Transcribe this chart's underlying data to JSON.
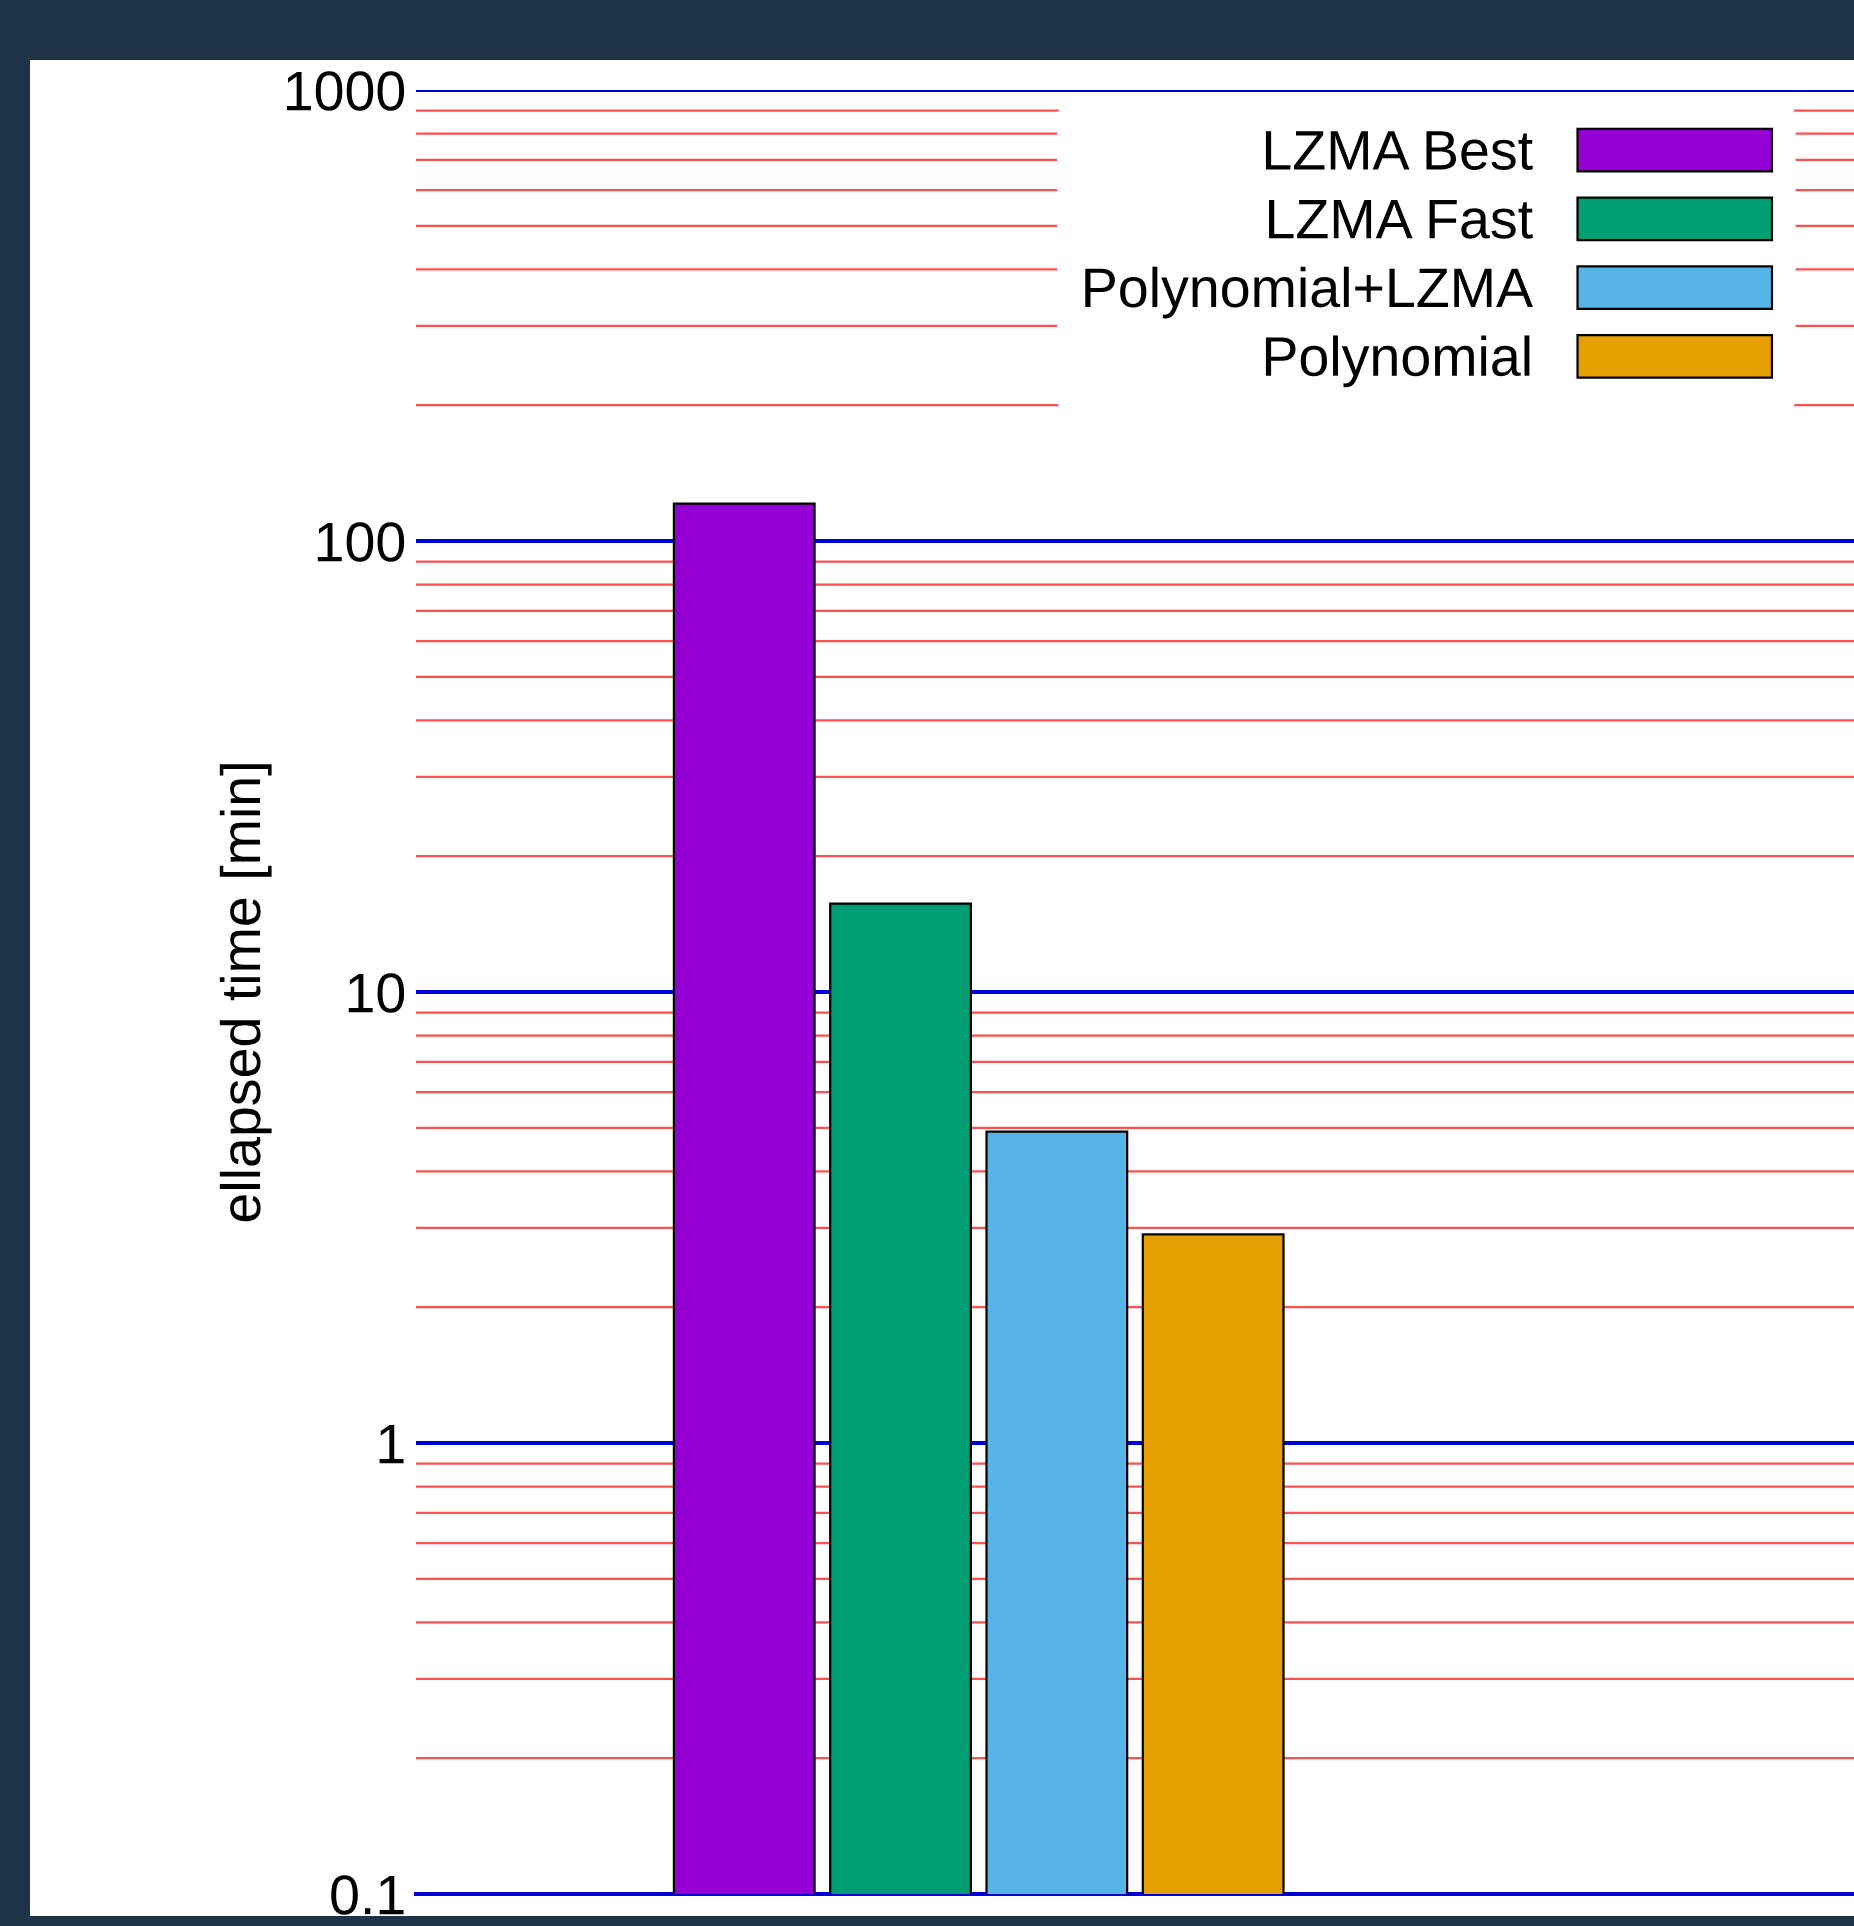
{
  "chart_data": {
    "type": "bar",
    "ylabel": "ellapsed time [min]",
    "categories": [
      null
    ],
    "series": [
      {
        "name": "LZMA Best",
        "color": "#9400d3",
        "values": [
          121
        ]
      },
      {
        "name": "LZMA Fast",
        "color": "#009e73",
        "values": [
          15.7
        ]
      },
      {
        "name": "Polynomial+LZMA",
        "color": "#56b4e9",
        "values": [
          4.9
        ]
      },
      {
        "name": "Polynomial",
        "color": "#e69f00",
        "values": [
          2.9
        ]
      }
    ],
    "log": "y",
    "ylim": [
      0.1,
      1000
    ],
    "yticks": [
      0.1,
      {
        "value": 0.2,
        "label": null
      },
      {
        "value": 0.3,
        "label": null
      },
      {
        "value": 0.4,
        "label": null
      },
      {
        "value": 0.5,
        "label": null
      },
      {
        "value": 0.6,
        "label": null
      },
      {
        "value": 0.7,
        "label": null
      },
      {
        "value": 0.8,
        "label": null
      },
      {
        "value": 0.9,
        "label": null
      },
      1,
      {
        "value": 2,
        "label": null
      },
      {
        "value": 3,
        "label": null
      },
      {
        "value": 4,
        "label": null
      },
      {
        "value": 5,
        "label": null
      },
      {
        "value": 6,
        "label": null
      },
      {
        "value": 7,
        "label": null
      },
      {
        "value": 8,
        "label": null
      },
      {
        "value": 9,
        "label": null
      },
      10,
      {
        "value": 20,
        "label": null
      },
      {
        "value": 30,
        "label": null
      },
      {
        "value": 40,
        "label": null
      },
      {
        "value": 50,
        "label": null
      },
      {
        "value": 60,
        "label": null
      },
      {
        "value": 70,
        "label": null
      },
      {
        "value": 80,
        "label": null
      },
      {
        "value": 90,
        "label": null
      },
      100,
      {
        "value": 200,
        "label": null
      },
      {
        "value": 300,
        "label": null
      },
      {
        "value": 400,
        "label": null
      },
      {
        "value": 500,
        "label": null
      },
      {
        "value": 600,
        "label": null
      },
      {
        "value": 700,
        "label": null
      },
      {
        "value": 800,
        "label": null
      },
      {
        "value": 900,
        "label": null
      },
      1000
    ],
    "grid": true,
    "legend": "top right",
    "tick_labels": "y"
  }
}
